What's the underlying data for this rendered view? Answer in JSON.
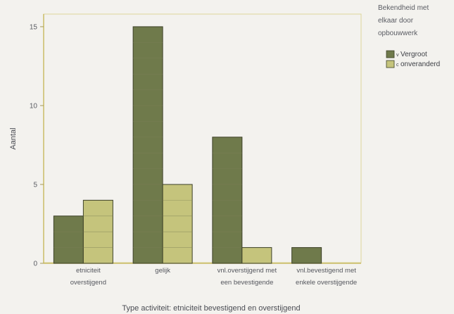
{
  "chart_data": {
    "type": "bar",
    "categories": [
      [
        "etniciteit",
        "overstijgend"
      ],
      [
        "gelijk"
      ],
      [
        "vnl.overstijgend met",
        "een bevestigende"
      ],
      [
        "vnl.bevestigend met",
        "enkele overstijgende"
      ]
    ],
    "series": [
      {
        "name": "Vergroot",
        "values": [
          3,
          15,
          8,
          1
        ]
      },
      {
        "name": "onveranderd",
        "values": [
          4,
          5,
          1,
          0
        ]
      }
    ],
    "xlabel": "Type activiteit: etniciteit bevestigend en overstijgend",
    "ylabel": "Aantal",
    "ylim": [
      0,
      15.8
    ],
    "yticks": [
      0,
      5,
      10,
      15
    ],
    "legend": {
      "title": [
        "Bekendheid met",
        "elkaar door",
        "opbouwwerk"
      ],
      "placement": "right-top",
      "markers": [
        "v",
        "c"
      ]
    },
    "colors": {
      "Vergroot": "#6f7a4b",
      "onveranderd": "#c5c47c",
      "grid": "#7d7f57",
      "axis": "#c9bc66",
      "frame": "#ddd59a"
    },
    "grid": true
  }
}
